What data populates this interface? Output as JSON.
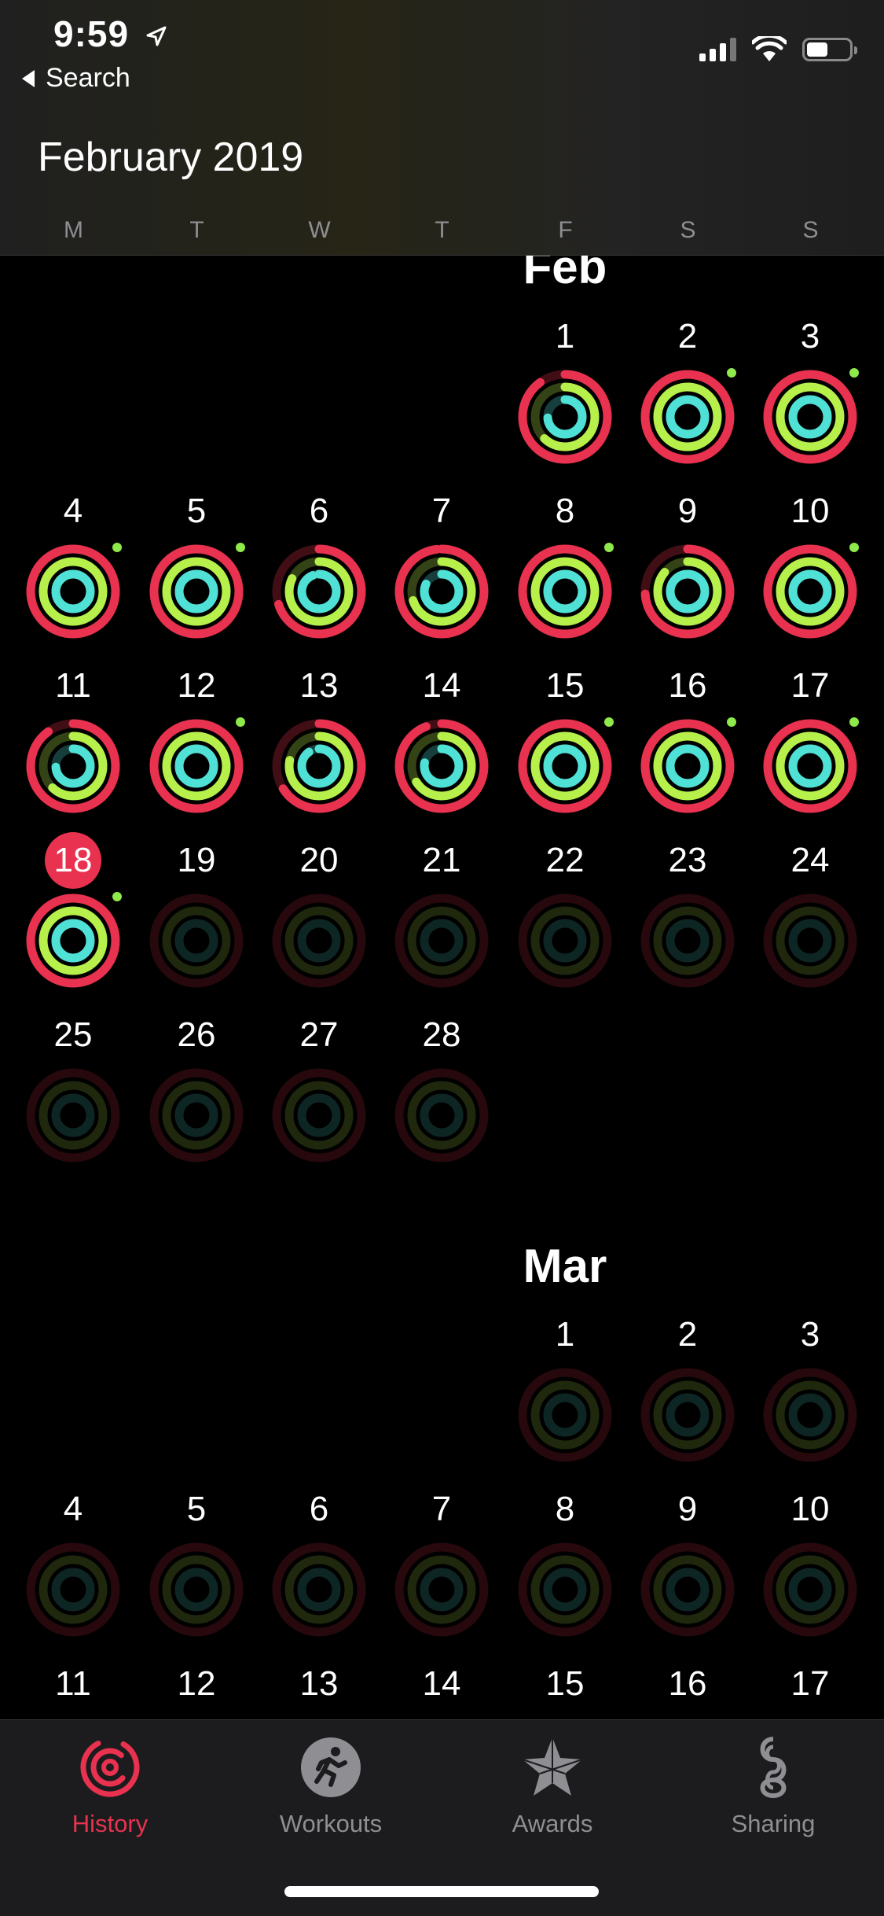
{
  "status_bar": {
    "time": "9:59",
    "back_label": "Search"
  },
  "header": {
    "title": "February 2019",
    "weekdays": [
      "M",
      "T",
      "W",
      "T",
      "F",
      "S",
      "S"
    ]
  },
  "months": [
    {
      "label": "Feb",
      "start_col": 4,
      "days": 28,
      "today": 18,
      "active_days": [
        1,
        2,
        3,
        4,
        5,
        6,
        7,
        8,
        9,
        10,
        11,
        12,
        13,
        14,
        15,
        16,
        17,
        18
      ],
      "goal_dot_days": [
        2,
        3,
        4,
        5,
        8,
        10,
        12,
        15,
        16,
        17,
        18
      ]
    },
    {
      "label": "Mar",
      "start_col": 4,
      "days": 17,
      "today": null,
      "active_days": [],
      "goal_dot_days": []
    }
  ],
  "colors": {
    "move": "#e8324f",
    "exercise": "#b7f04a",
    "stand": "#4fe0d6",
    "goal_dot": "#8ee94a",
    "accent": "#e8324f"
  },
  "tabs": [
    {
      "label": "History",
      "icon": "history-rings-icon",
      "active": true
    },
    {
      "label": "Workouts",
      "icon": "running-figure-icon",
      "active": false
    },
    {
      "label": "Awards",
      "icon": "star-award-icon",
      "active": false
    },
    {
      "label": "Sharing",
      "icon": "sharing-links-icon",
      "active": false
    }
  ]
}
